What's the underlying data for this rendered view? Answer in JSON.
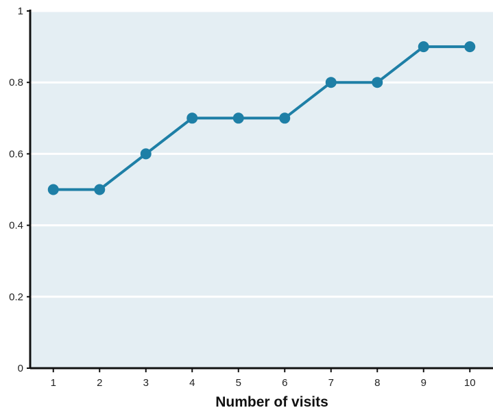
{
  "chart_data": {
    "type": "line",
    "title": "",
    "xlabel": "Number of visits",
    "ylabel": "",
    "x": [
      1,
      2,
      3,
      4,
      5,
      6,
      7,
      8,
      9,
      10
    ],
    "y": [
      0.5,
      0.5,
      0.6,
      0.7,
      0.7,
      0.7,
      0.8,
      0.8,
      0.9,
      0.9
    ],
    "x_ticks": [
      "1",
      "2",
      "3",
      "4",
      "5",
      "6",
      "7",
      "8",
      "9",
      "10"
    ],
    "y_ticks": [
      "0",
      "0.2",
      "0.4",
      "0.6",
      "0.8",
      "1"
    ],
    "ylim": [
      0,
      1
    ],
    "xlim": [
      0.5,
      10.5
    ],
    "grid": "horizontal",
    "legend": "none",
    "colors": {
      "line": "#1e7fa6",
      "plot_background": "#e4eef3",
      "grid": "#ffffff",
      "axis": "#111111"
    }
  }
}
